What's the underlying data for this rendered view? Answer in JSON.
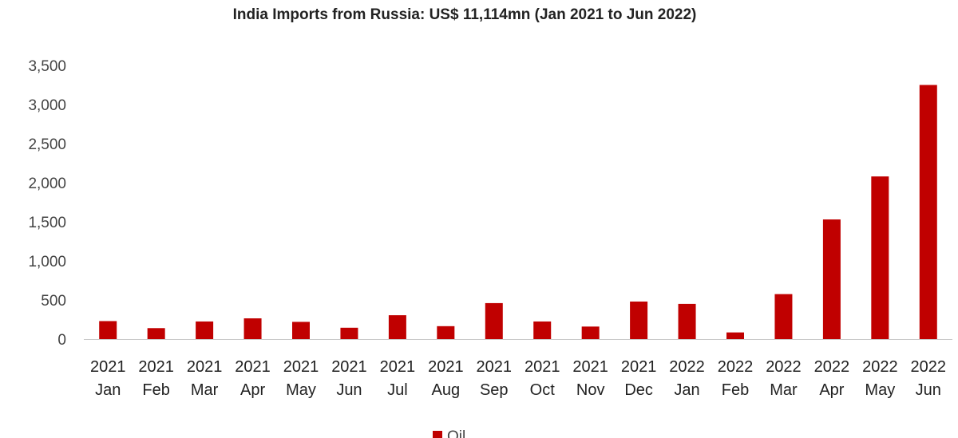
{
  "chart_data": {
    "type": "bar",
    "title": "India Imports from Russia: US$ 11,114mn  (Jan 2021  to Jun 2022)",
    "xlabel": "",
    "ylabel": "",
    "ylim": [
      0,
      3500
    ],
    "yticks": [
      0,
      500,
      1000,
      1500,
      2000,
      2500,
      3000,
      3500
    ],
    "ytick_labels": [
      "0",
      "500",
      "1,000",
      "1,500",
      "2,000",
      "2,500",
      "3,000",
      "3,500"
    ],
    "categories": [
      {
        "year": "2021",
        "month": "Jan"
      },
      {
        "year": "2021",
        "month": "Feb"
      },
      {
        "year": "2021",
        "month": "Mar"
      },
      {
        "year": "2021",
        "month": "Apr"
      },
      {
        "year": "2021",
        "month": "May"
      },
      {
        "year": "2021",
        "month": "Jun"
      },
      {
        "year": "2021",
        "month": "Jul"
      },
      {
        "year": "2021",
        "month": "Aug"
      },
      {
        "year": "2021",
        "month": "Sep"
      },
      {
        "year": "2021",
        "month": "Oct"
      },
      {
        "year": "2021",
        "month": "Nov"
      },
      {
        "year": "2021",
        "month": "Dec"
      },
      {
        "year": "2022",
        "month": "Jan"
      },
      {
        "year": "2022",
        "month": "Feb"
      },
      {
        "year": "2022",
        "month": "Mar"
      },
      {
        "year": "2022",
        "month": "Apr"
      },
      {
        "year": "2022",
        "month": "May"
      },
      {
        "year": "2022",
        "month": "Jun"
      }
    ],
    "series": [
      {
        "name": "Oil",
        "color": "#c00000",
        "values": [
          230,
          140,
          225,
          265,
          220,
          145,
          305,
          165,
          460,
          225,
          160,
          480,
          450,
          85,
          575,
          1530,
          2080,
          3250
        ]
      }
    ],
    "grid": false,
    "legend_position": "bottom-center"
  }
}
